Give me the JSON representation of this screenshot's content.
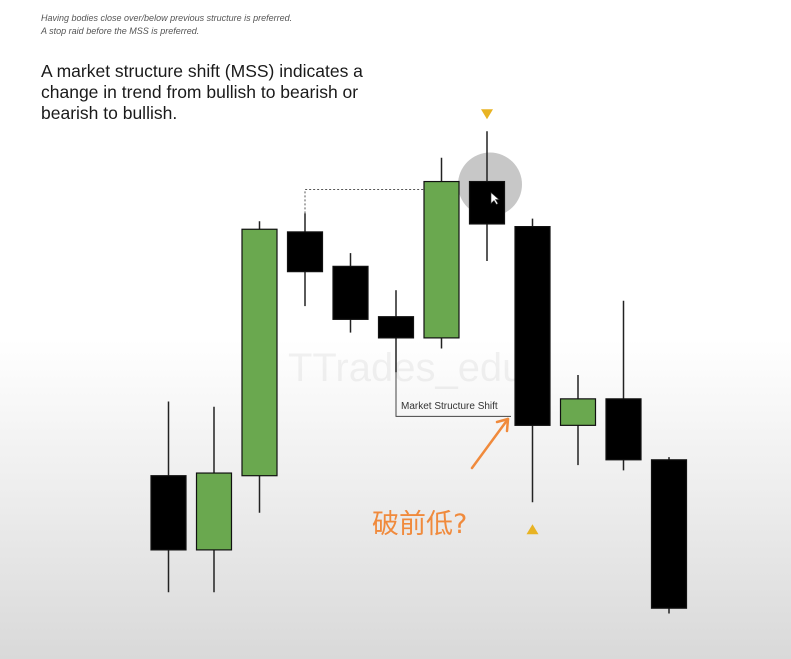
{
  "notes": [
    "Having bodies close over/below previous structure is preferred.",
    "A stop raid before the MSS is preferred."
  ],
  "headline": "A market structure shift (MSS) indicates a change in trend from bullish to bearish or bearish to bullish.",
  "watermark": "TTrades_edu",
  "annotations": {
    "mss_label": "Market Structure Shift",
    "chinese_note": "破前低?"
  },
  "colors": {
    "bullish": "#6aa84f",
    "bearish": "#000000",
    "marker": "#e8b323",
    "arrow": "#f08a3c",
    "cursor_highlight": "#bdbdbd"
  },
  "chart_data": {
    "type": "candlestick",
    "title": "",
    "xlabel": "",
    "ylabel": "",
    "ylim": [
      0,
      100
    ],
    "candles": [
      {
        "index": 1,
        "direction": "bearish",
        "open": 31,
        "high": 45,
        "low": 9,
        "close": 17
      },
      {
        "index": 2,
        "direction": "bullish",
        "open": 17,
        "high": 44,
        "low": 9,
        "close": 31.5
      },
      {
        "index": 3,
        "direction": "bullish",
        "open": 31,
        "high": 79,
        "low": 24,
        "close": 77.5
      },
      {
        "index": 4,
        "direction": "bearish",
        "open": 77,
        "high": 80.5,
        "low": 63,
        "close": 69.5
      },
      {
        "index": 5,
        "direction": "bearish",
        "open": 70.5,
        "high": 73,
        "low": 58,
        "close": 60.5
      },
      {
        "index": 6,
        "direction": "bearish",
        "open": 61,
        "high": 66,
        "low": 50.5,
        "close": 57
      },
      {
        "index": 7,
        "direction": "bullish",
        "open": 57,
        "high": 91,
        "low": 55,
        "close": 86.5
      },
      {
        "index": 8,
        "direction": "bearish",
        "open": 86.5,
        "high": 96,
        "low": 71.5,
        "close": 78.5
      },
      {
        "index": 9,
        "direction": "bearish",
        "open": 78,
        "high": 79.5,
        "low": 26,
        "close": 40.5
      },
      {
        "index": 10,
        "direction": "bullish",
        "open": 40.5,
        "high": 50,
        "low": 33,
        "close": 45.5
      },
      {
        "index": 11,
        "direction": "bearish",
        "open": 45.5,
        "high": 64,
        "low": 32,
        "close": 34
      },
      {
        "index": 12,
        "direction": "bearish",
        "open": 34,
        "high": 34.5,
        "low": 5,
        "close": 6
      }
    ],
    "markers": [
      {
        "candle": 8,
        "position": "above",
        "shape": "down-triangle"
      },
      {
        "candle": 9,
        "position": "below",
        "shape": "up-triangle"
      }
    ],
    "levels": [
      {
        "name": "previous high",
        "from_candle": 4,
        "to_candle": 7,
        "y": 85
      },
      {
        "name": "market structure shift",
        "from_candle": 6,
        "to_candle": 9,
        "y": 50.5
      }
    ]
  }
}
